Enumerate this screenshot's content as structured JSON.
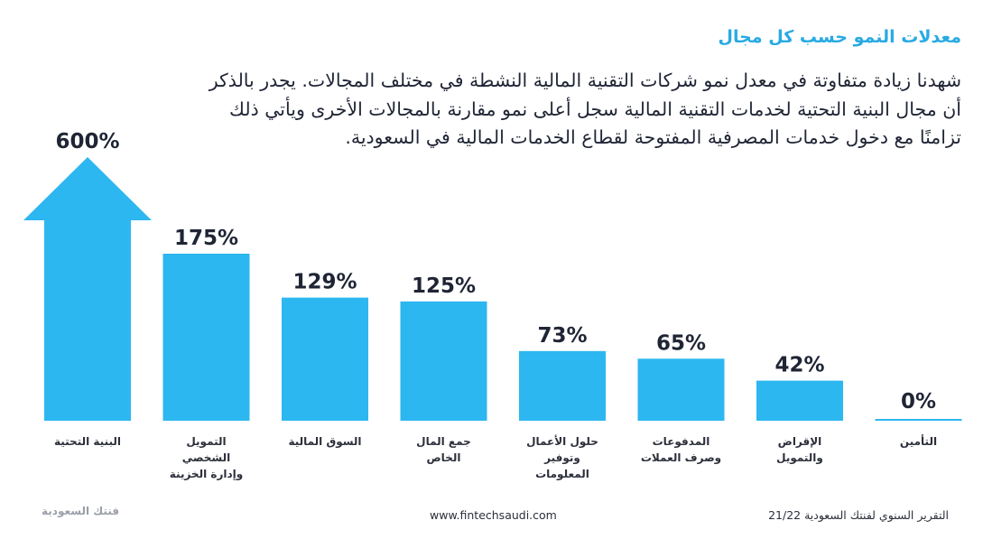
{
  "header": {
    "title": "معدلات النمو حسب كل مجال",
    "description": "شهدنا زيادة متفاوتة في معدل نمو شركات التقنية المالية النشطة في مختلف المجالات. يجدر بالذكر أن مجال البنية التحتية لخدمات التقنية المالية سجل أعلى نمو مقارنة بالمجالات الأخرى ويأتي ذلك تزامنًا مع دخول خدمات المصرفية المفتوحة لقطاع الخدمات المالية في السعودية."
  },
  "chart_data": {
    "type": "bar",
    "title": "معدلات النمو حسب كل مجال",
    "unit": "%",
    "categories": [
      [
        "البنية التحتية"
      ],
      [
        "التمويل",
        "الشخصي",
        "وإدارة الخزينة"
      ],
      [
        "السوق المالية"
      ],
      [
        "جمع المال",
        "الخاص"
      ],
      [
        "حلول الأعمال",
        "وتوفير",
        "المعلومات"
      ],
      [
        "المدفوعات",
        "وصرف العملات"
      ],
      [
        "الإقراض",
        "والتمويل"
      ],
      [
        "التأمين"
      ]
    ],
    "values": [
      600,
      175,
      129,
      125,
      73,
      65,
      42,
      0
    ],
    "value_labels": [
      "600%",
      "175%",
      "129%",
      "125%",
      "73%",
      "65%",
      "42%",
      "0%"
    ],
    "highlight": "first bar drawn as an upward arrow (off-scale)",
    "xlabel": "",
    "ylabel": "",
    "ylim": [
      0,
      200
    ],
    "grid": false,
    "legend": "none",
    "color": "#2db7f0"
  },
  "footer": {
    "brand": "فنتك السعودية",
    "website": "www.fintechsaudi.com",
    "report": "التقرير السنوي لفنتك السعودية 21/22"
  },
  "colors": {
    "accent": "#29aae3",
    "bar": "#2db7f0",
    "text": "#1f2535",
    "muted": "#9aa0a8"
  }
}
